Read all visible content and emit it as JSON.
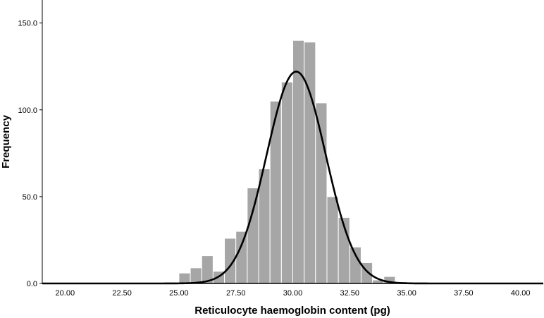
{
  "chart_data": {
    "type": "bar",
    "title": "",
    "xlabel": "Reticulocyte haemoglobin content (pg)",
    "ylabel": "Frequency",
    "xlim": [
      19.0,
      41.0
    ],
    "ylim": [
      0,
      160
    ],
    "x_ticks": [
      "20.00",
      "22.50",
      "25.00",
      "27.50",
      "30.00",
      "32.50",
      "35.00",
      "37.50",
      "40.00"
    ],
    "y_ticks": [
      "0.0",
      "50.0",
      "100.0",
      "150.0"
    ],
    "bin_width": 0.5,
    "bins": [
      {
        "start": 25.0,
        "end": 25.5,
        "count": 6
      },
      {
        "start": 25.5,
        "end": 26.0,
        "count": 9
      },
      {
        "start": 26.0,
        "end": 26.5,
        "count": 16
      },
      {
        "start": 26.5,
        "end": 27.0,
        "count": 7
      },
      {
        "start": 27.0,
        "end": 27.5,
        "count": 26
      },
      {
        "start": 27.5,
        "end": 28.0,
        "count": 30
      },
      {
        "start": 28.0,
        "end": 28.5,
        "count": 55
      },
      {
        "start": 28.5,
        "end": 29.0,
        "count": 66
      },
      {
        "start": 29.0,
        "end": 29.5,
        "count": 105
      },
      {
        "start": 29.5,
        "end": 30.0,
        "count": 116
      },
      {
        "start": 30.0,
        "end": 30.5,
        "count": 140
      },
      {
        "start": 30.5,
        "end": 31.0,
        "count": 139
      },
      {
        "start": 31.0,
        "end": 31.5,
        "count": 104
      },
      {
        "start": 31.5,
        "end": 32.0,
        "count": 50
      },
      {
        "start": 32.0,
        "end": 32.5,
        "count": 38
      },
      {
        "start": 32.5,
        "end": 33.0,
        "count": 21
      },
      {
        "start": 33.0,
        "end": 33.5,
        "count": 12
      },
      {
        "start": 33.5,
        "end": 34.0,
        "count": 2
      },
      {
        "start": 34.0,
        "end": 34.5,
        "count": 4
      },
      {
        "start": 34.5,
        "end": 35.0,
        "count": 1
      }
    ],
    "normal_curve": {
      "mean": 30.15,
      "sd": 1.3,
      "peak": 122
    },
    "bar_color": "#a6a6a6",
    "bar_edge_color": "#ffffff",
    "curve_color": "#000000",
    "grid": false,
    "legend": "none"
  }
}
